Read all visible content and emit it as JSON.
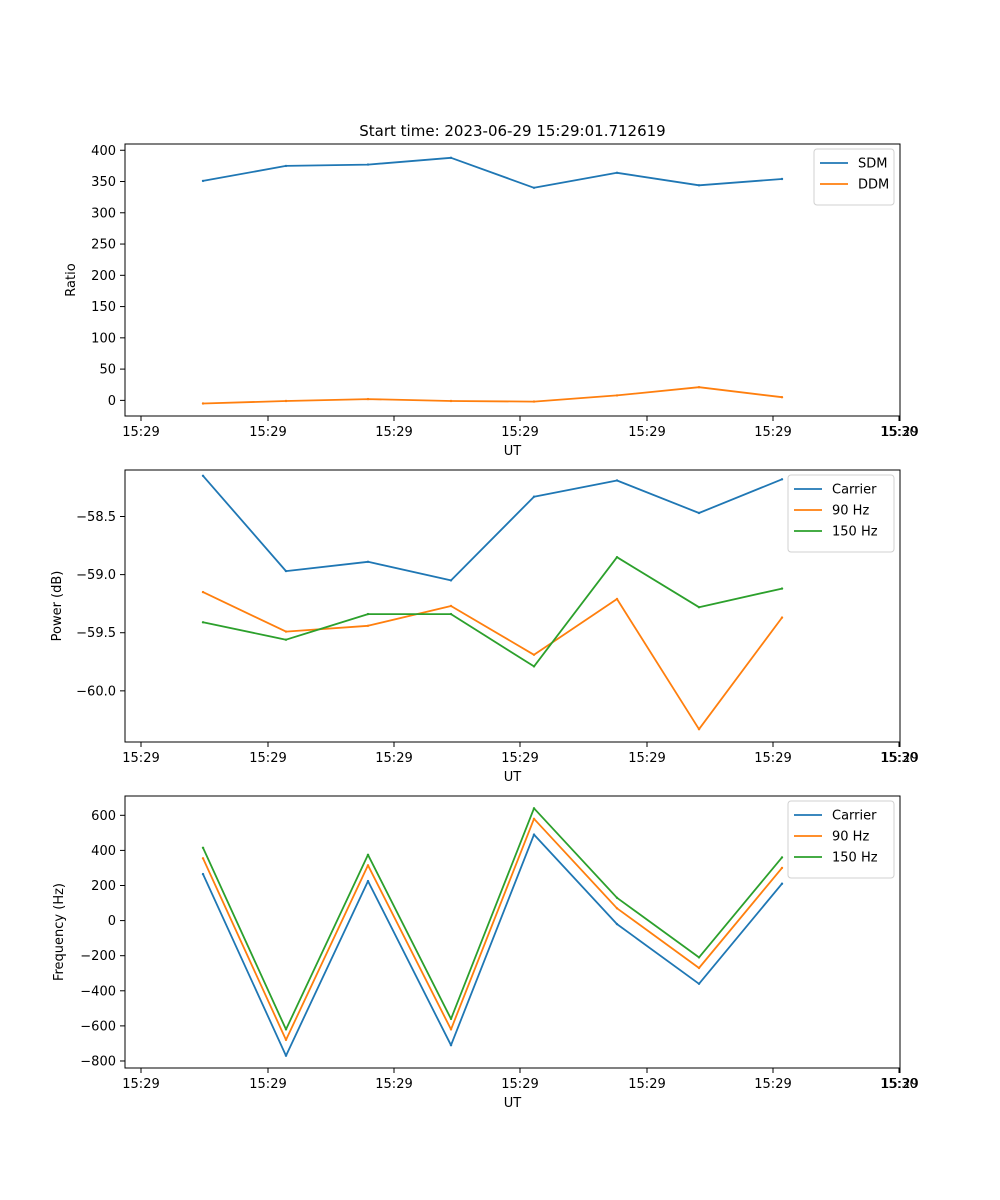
{
  "title": "Start time: 2023-06-29 15:29:01.712619",
  "chart_data": [
    {
      "type": "line",
      "xlabel": "UT",
      "ylabel": "Ratio",
      "x_tick_labels": [
        "15:29",
        "15:29",
        "15:29",
        "15:29",
        "15:29",
        "15:29",
        "15:29",
        "15:30"
      ],
      "y_ticks": [
        0,
        50,
        100,
        150,
        200,
        250,
        300,
        350,
        400
      ],
      "y_tick_labels": [
        "0",
        "50",
        "100",
        "150",
        "200",
        "250",
        "300",
        "350",
        "400"
      ],
      "ylim": [
        -25,
        410
      ],
      "legend_position": "top-right",
      "series": [
        {
          "name": "SDM",
          "color": "#1f77b4",
          "values": [
            351,
            375,
            377,
            388,
            340,
            364,
            344,
            354
          ]
        },
        {
          "name": "DDM",
          "color": "#ff7f0e",
          "values": [
            -5,
            -1,
            2,
            -1,
            -2,
            8,
            21,
            5
          ]
        }
      ]
    },
    {
      "type": "line",
      "xlabel": "UT",
      "ylabel": "Power (dB)",
      "x_tick_labels": [
        "15:29",
        "15:29",
        "15:29",
        "15:29",
        "15:29",
        "15:29",
        "15:29",
        "15:30"
      ],
      "y_ticks": [
        -58.5,
        -59.0,
        -59.5,
        -60.0
      ],
      "y_tick_labels": [
        "−58.5",
        "−59.0",
        "−59.5",
        "−60.0"
      ],
      "ylim": [
        -60.44,
        -58.1
      ],
      "legend_position": "top-right",
      "series": [
        {
          "name": "Carrier",
          "color": "#1f77b4",
          "values": [
            -58.15,
            -58.97,
            -58.89,
            -59.05,
            -58.33,
            -58.19,
            -58.47,
            -58.18
          ]
        },
        {
          "name": "90 Hz",
          "color": "#ff7f0e",
          "values": [
            -59.15,
            -59.49,
            -59.44,
            -59.27,
            -59.69,
            -59.21,
            -60.33,
            -59.37
          ]
        },
        {
          "name": "150 Hz",
          "color": "#2ca02c",
          "values": [
            -59.41,
            -59.56,
            -59.34,
            -59.34,
            -59.79,
            -58.85,
            -59.28,
            -59.12
          ]
        }
      ]
    },
    {
      "type": "line",
      "xlabel": "UT",
      "ylabel": "Frequency (Hz)",
      "x_tick_labels": [
        "15:29",
        "15:29",
        "15:29",
        "15:29",
        "15:29",
        "15:29",
        "15:29",
        "15:30"
      ],
      "y_ticks": [
        600,
        400,
        200,
        0,
        -200,
        -400,
        -600,
        -800
      ],
      "y_tick_labels": [
        "600",
        "400",
        "200",
        "0",
        "−200",
        "−400",
        "−600",
        "−800"
      ],
      "ylim": [
        -840,
        710
      ],
      "legend_position": "top-right",
      "series": [
        {
          "name": "Carrier",
          "color": "#1f77b4",
          "values": [
            265,
            -770,
            225,
            -710,
            490,
            -20,
            -360,
            210
          ]
        },
        {
          "name": "90 Hz",
          "color": "#ff7f0e",
          "values": [
            355,
            -680,
            315,
            -620,
            580,
            70,
            -270,
            300
          ]
        },
        {
          "name": "150 Hz",
          "color": "#2ca02c",
          "values": [
            415,
            -620,
            375,
            -560,
            640,
            130,
            -210,
            360
          ]
        }
      ]
    }
  ]
}
